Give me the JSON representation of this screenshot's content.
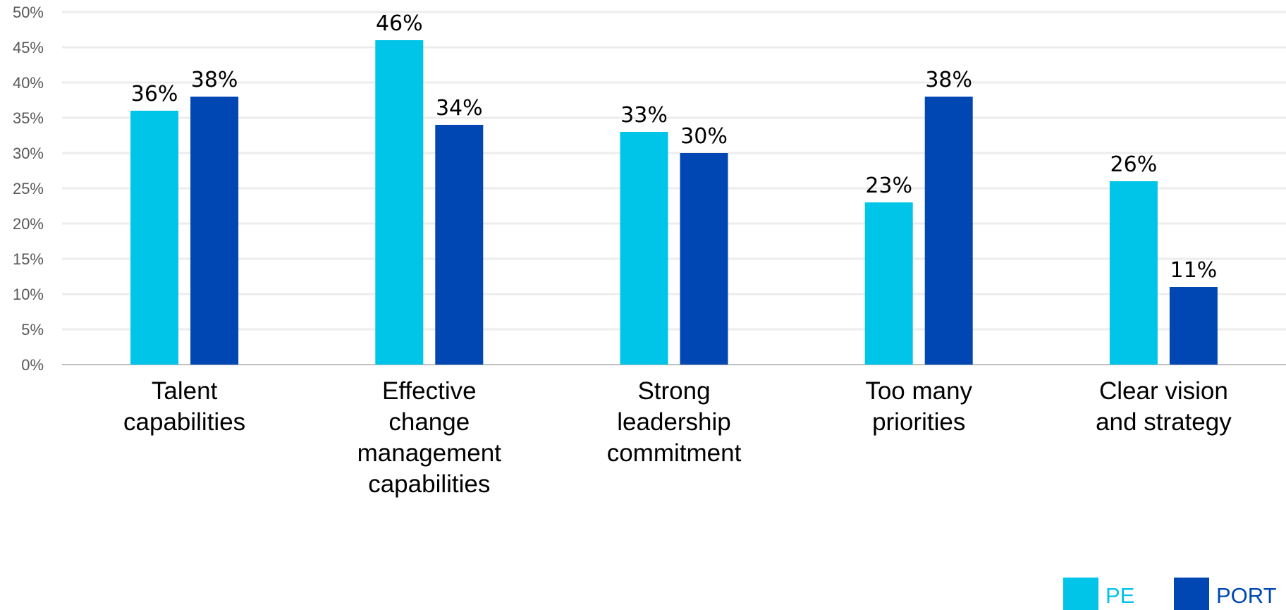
{
  "chart_data": {
    "type": "bar",
    "categories": [
      [
        "Talent",
        "capabilities"
      ],
      [
        "Effective",
        "change",
        "management",
        "capabilities"
      ],
      [
        "Strong",
        "leadership",
        "commitment"
      ],
      [
        "Too many",
        "priorities"
      ],
      [
        "Clear vision",
        "and strategy"
      ]
    ],
    "series": [
      {
        "name": "PE",
        "color": "#00c4e8",
        "values": [
          36,
          46,
          33,
          23,
          26
        ]
      },
      {
        "name": "PORT",
        "color": "#0047b3",
        "values": [
          38,
          34,
          30,
          38,
          11
        ]
      }
    ],
    "data_label_suffix": "%",
    "ylim": [
      0,
      50
    ],
    "yticks": [
      0,
      5,
      10,
      15,
      20,
      25,
      30,
      35,
      40,
      45,
      50
    ],
    "ytick_labels": [
      "0%",
      "5%",
      "10%",
      "15%",
      "20%",
      "25%",
      "30%",
      "35%",
      "40%",
      "45%",
      "50%"
    ],
    "grid": true,
    "legend_position": "bottom-right",
    "title": "",
    "xlabel": "",
    "ylabel": ""
  }
}
